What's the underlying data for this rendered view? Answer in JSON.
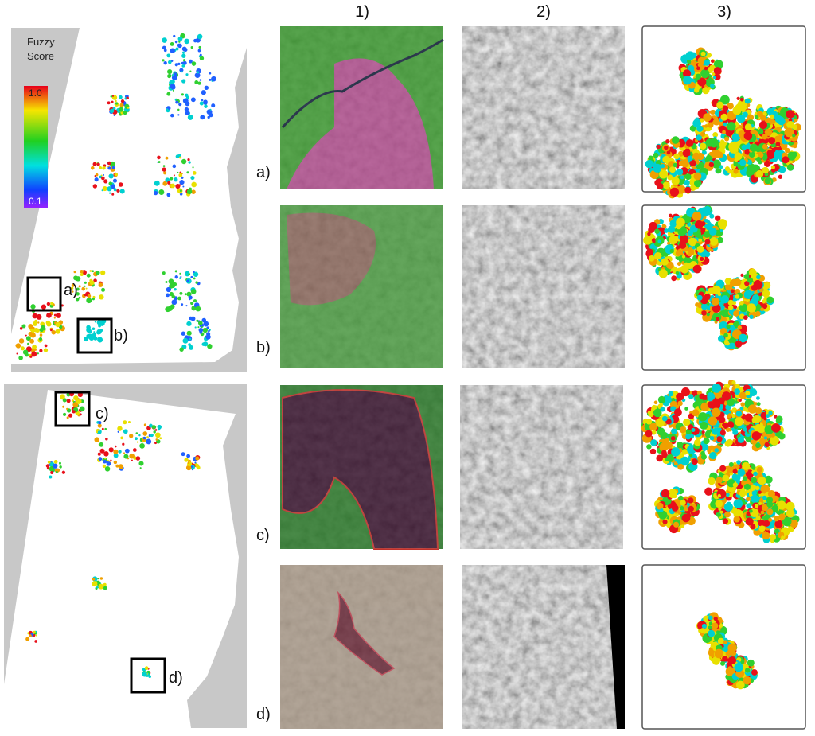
{
  "legend": {
    "title": "Fuzzy Score",
    "max_label": "1.0",
    "min_label": "0.1"
  },
  "map_labels": [
    "a)",
    "b)",
    "c)",
    "d)"
  ],
  "columns": [
    "1)",
    "2)",
    "3)"
  ],
  "rows": [
    "a)",
    "b)",
    "c)",
    "d)"
  ]
}
